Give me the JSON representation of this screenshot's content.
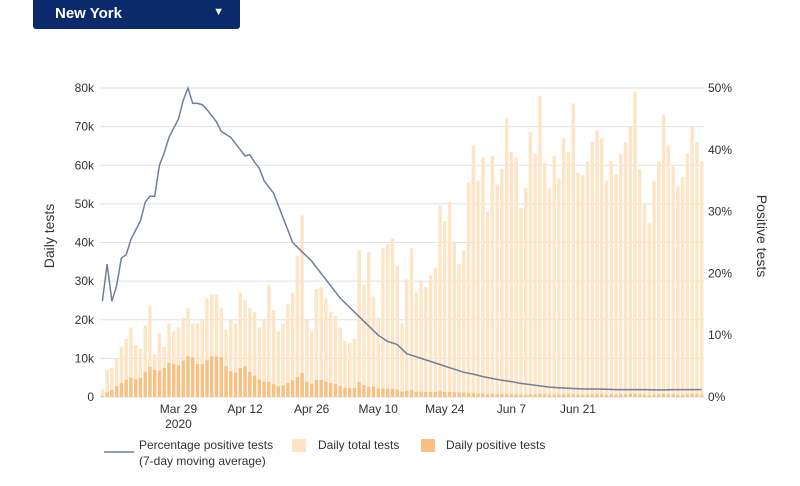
{
  "selector": {
    "value": "New York",
    "caret": "▼"
  },
  "chart_data": {
    "type": "bar+line",
    "y_left": {
      "label": "Daily tests",
      "ticks": [
        "0",
        "10k",
        "20k",
        "30k",
        "40k",
        "50k",
        "60k",
        "70k",
        "80k"
      ],
      "range": [
        0,
        80000
      ]
    },
    "y_right": {
      "label": "Positive tests",
      "ticks": [
        "0%",
        "10%",
        "20%",
        "30%",
        "40%",
        "50%"
      ],
      "range": [
        0,
        50
      ]
    },
    "x_ticks": [
      {
        "label": "Mar 29",
        "sub": "2020",
        "day": 16
      },
      {
        "label": "Apr 12",
        "sub": "",
        "day": 30
      },
      {
        "label": "Apr 26",
        "sub": "",
        "day": 44
      },
      {
        "label": "May 10",
        "sub": "",
        "day": 58
      },
      {
        "label": "May 24",
        "sub": "",
        "day": 72
      },
      {
        "label": "Jun 7",
        "sub": "",
        "day": 86
      },
      {
        "label": "Jun 21",
        "sub": "",
        "day": 100
      }
    ],
    "dates": {
      "start": "Mar 13",
      "end": "Jul 1"
    },
    "grid": true,
    "colors": {
      "total": "#fde5c6",
      "positive": "#f7c184",
      "line": "#6f7f9a"
    },
    "legend": {
      "position": "bottom-left",
      "line_label": "Percentage positive tests",
      "line_sublabel": "(7-day moving average)",
      "total_label": "Daily total tests",
      "positive_label": "Daily positive tests"
    },
    "series": [
      {
        "name": "Daily total tests",
        "axis": "left",
        "values": [
          2000,
          7000,
          7500,
          10000,
          13000,
          15000,
          18000,
          13500,
          12500,
          18500,
          23500,
          11000,
          16500,
          13000,
          19000,
          17000,
          18000,
          20500,
          23000,
          19000,
          19000,
          20000,
          25500,
          26500,
          26500,
          23000,
          17500,
          20000,
          19000,
          27000,
          25000,
          23000,
          22000,
          18000,
          20000,
          29000,
          22500,
          17000,
          19000,
          24000,
          27000,
          36500,
          47000,
          20000,
          17000,
          28000,
          28500,
          25500,
          22000,
          21000,
          18000,
          14500,
          14000,
          15000,
          38000,
          29000,
          37500,
          26000,
          20500,
          38500,
          39500,
          41000,
          34000,
          19000,
          30500,
          38500,
          27000,
          30000,
          28500,
          31500,
          33500,
          49500,
          45500,
          50500,
          40000,
          34500,
          38000,
          55500,
          65000,
          56000,
          62000,
          48000,
          62500,
          55000,
          59000,
          72000,
          63500,
          62000,
          49000,
          54000,
          68500,
          63000,
          78000,
          60500,
          54000,
          62500,
          56500,
          67000,
          63500,
          76000,
          58000,
          57500,
          61000,
          66000,
          69000,
          67000,
          56000,
          61000,
          57500,
          63000,
          66000,
          70000,
          79000,
          59000,
          50000,
          45000,
          56000,
          61000,
          73000,
          65000,
          60000,
          54500,
          57000,
          63000,
          70000,
          66000,
          61000
        ]
      },
      {
        "name": "Daily positive tests",
        "axis": "left",
        "values": [
          300,
          1200,
          1800,
          2800,
          3600,
          4500,
          5000,
          4600,
          5000,
          6500,
          7800,
          7000,
          6800,
          7500,
          8800,
          8500,
          8200,
          9400,
          10600,
          10300,
          8500,
          8500,
          9500,
          10600,
          10500,
          10300,
          8000,
          6700,
          6300,
          7500,
          7900,
          6500,
          5500,
          4500,
          4000,
          3900,
          3300,
          2800,
          3000,
          3600,
          4300,
          5200,
          6200,
          3900,
          3300,
          4400,
          4400,
          4000,
          3600,
          3300,
          2900,
          2400,
          2300,
          2300,
          3900,
          3100,
          2700,
          2700,
          2200,
          2200,
          2100,
          2100,
          1900,
          1400,
          1600,
          1800,
          1300,
          1400,
          1300,
          1300,
          1300,
          1500,
          1300,
          1300,
          1200,
          1100,
          1100,
          1000,
          1000,
          900,
          900,
          700,
          800,
          700,
          800,
          800,
          700,
          700,
          600,
          600,
          700,
          700,
          800,
          700,
          600,
          600,
          600,
          700,
          700,
          700,
          600,
          600,
          600,
          700,
          700,
          700,
          600,
          700,
          600,
          700,
          700,
          800,
          800,
          700,
          600,
          500,
          600,
          700,
          800,
          700,
          700,
          600,
          600,
          700,
          800,
          700,
          600
        ]
      },
      {
        "name": "Percentage positive tests (7-day moving average)",
        "axis": "right",
        "points": [
          [
            0,
            15.5
          ],
          [
            1,
            21.5
          ],
          [
            2,
            15.5
          ],
          [
            3,
            18
          ],
          [
            4,
            22.5
          ],
          [
            5,
            23
          ],
          [
            6,
            25.5
          ],
          [
            7,
            27
          ],
          [
            8,
            28.5
          ],
          [
            9,
            31.5
          ],
          [
            10,
            32.5
          ],
          [
            11,
            32.5
          ],
          [
            12,
            37.5
          ],
          [
            13,
            39.5
          ],
          [
            14,
            42
          ],
          [
            15,
            43.5
          ],
          [
            16,
            45
          ],
          [
            17,
            48
          ],
          [
            18,
            50
          ],
          [
            19,
            47.5
          ],
          [
            20,
            47.5
          ],
          [
            21,
            47.3
          ],
          [
            22,
            46.5
          ],
          [
            23,
            45.5
          ],
          [
            24,
            44.5
          ],
          [
            25,
            43
          ],
          [
            26,
            42.5
          ],
          [
            27,
            42
          ],
          [
            28,
            41
          ],
          [
            29,
            40
          ],
          [
            30,
            39
          ],
          [
            31,
            39.2
          ],
          [
            32,
            38
          ],
          [
            33,
            37
          ],
          [
            34,
            35
          ],
          [
            35,
            34
          ],
          [
            36,
            33
          ],
          [
            37,
            31
          ],
          [
            38,
            29
          ],
          [
            39,
            27
          ],
          [
            40,
            25
          ],
          [
            42,
            23.5
          ],
          [
            44,
            22
          ],
          [
            46,
            20
          ],
          [
            48,
            18
          ],
          [
            50,
            16
          ],
          [
            52,
            14.5
          ],
          [
            54,
            13
          ],
          [
            56,
            11.5
          ],
          [
            58,
            10
          ],
          [
            60,
            9
          ],
          [
            62,
            8.5
          ],
          [
            64,
            7
          ],
          [
            66,
            6.5
          ],
          [
            68,
            6
          ],
          [
            70,
            5.5
          ],
          [
            72,
            5
          ],
          [
            74,
            4.5
          ],
          [
            76,
            4
          ],
          [
            78,
            3.7
          ],
          [
            80,
            3.3
          ],
          [
            82,
            3
          ],
          [
            84,
            2.7
          ],
          [
            86,
            2.5
          ],
          [
            88,
            2.2
          ],
          [
            90,
            2
          ],
          [
            92,
            1.8
          ],
          [
            94,
            1.6
          ],
          [
            96,
            1.5
          ],
          [
            98,
            1.4
          ],
          [
            100,
            1.35
          ],
          [
            102,
            1.3
          ],
          [
            104,
            1.3
          ],
          [
            106,
            1.25
          ],
          [
            108,
            1.2
          ],
          [
            110,
            1.2
          ],
          [
            112,
            1.2
          ],
          [
            114,
            1.2
          ],
          [
            116,
            1.15
          ],
          [
            118,
            1.15
          ],
          [
            120,
            1.2
          ],
          [
            122,
            1.2
          ],
          [
            124,
            1.2
          ],
          [
            126,
            1.2
          ]
        ]
      }
    ]
  }
}
